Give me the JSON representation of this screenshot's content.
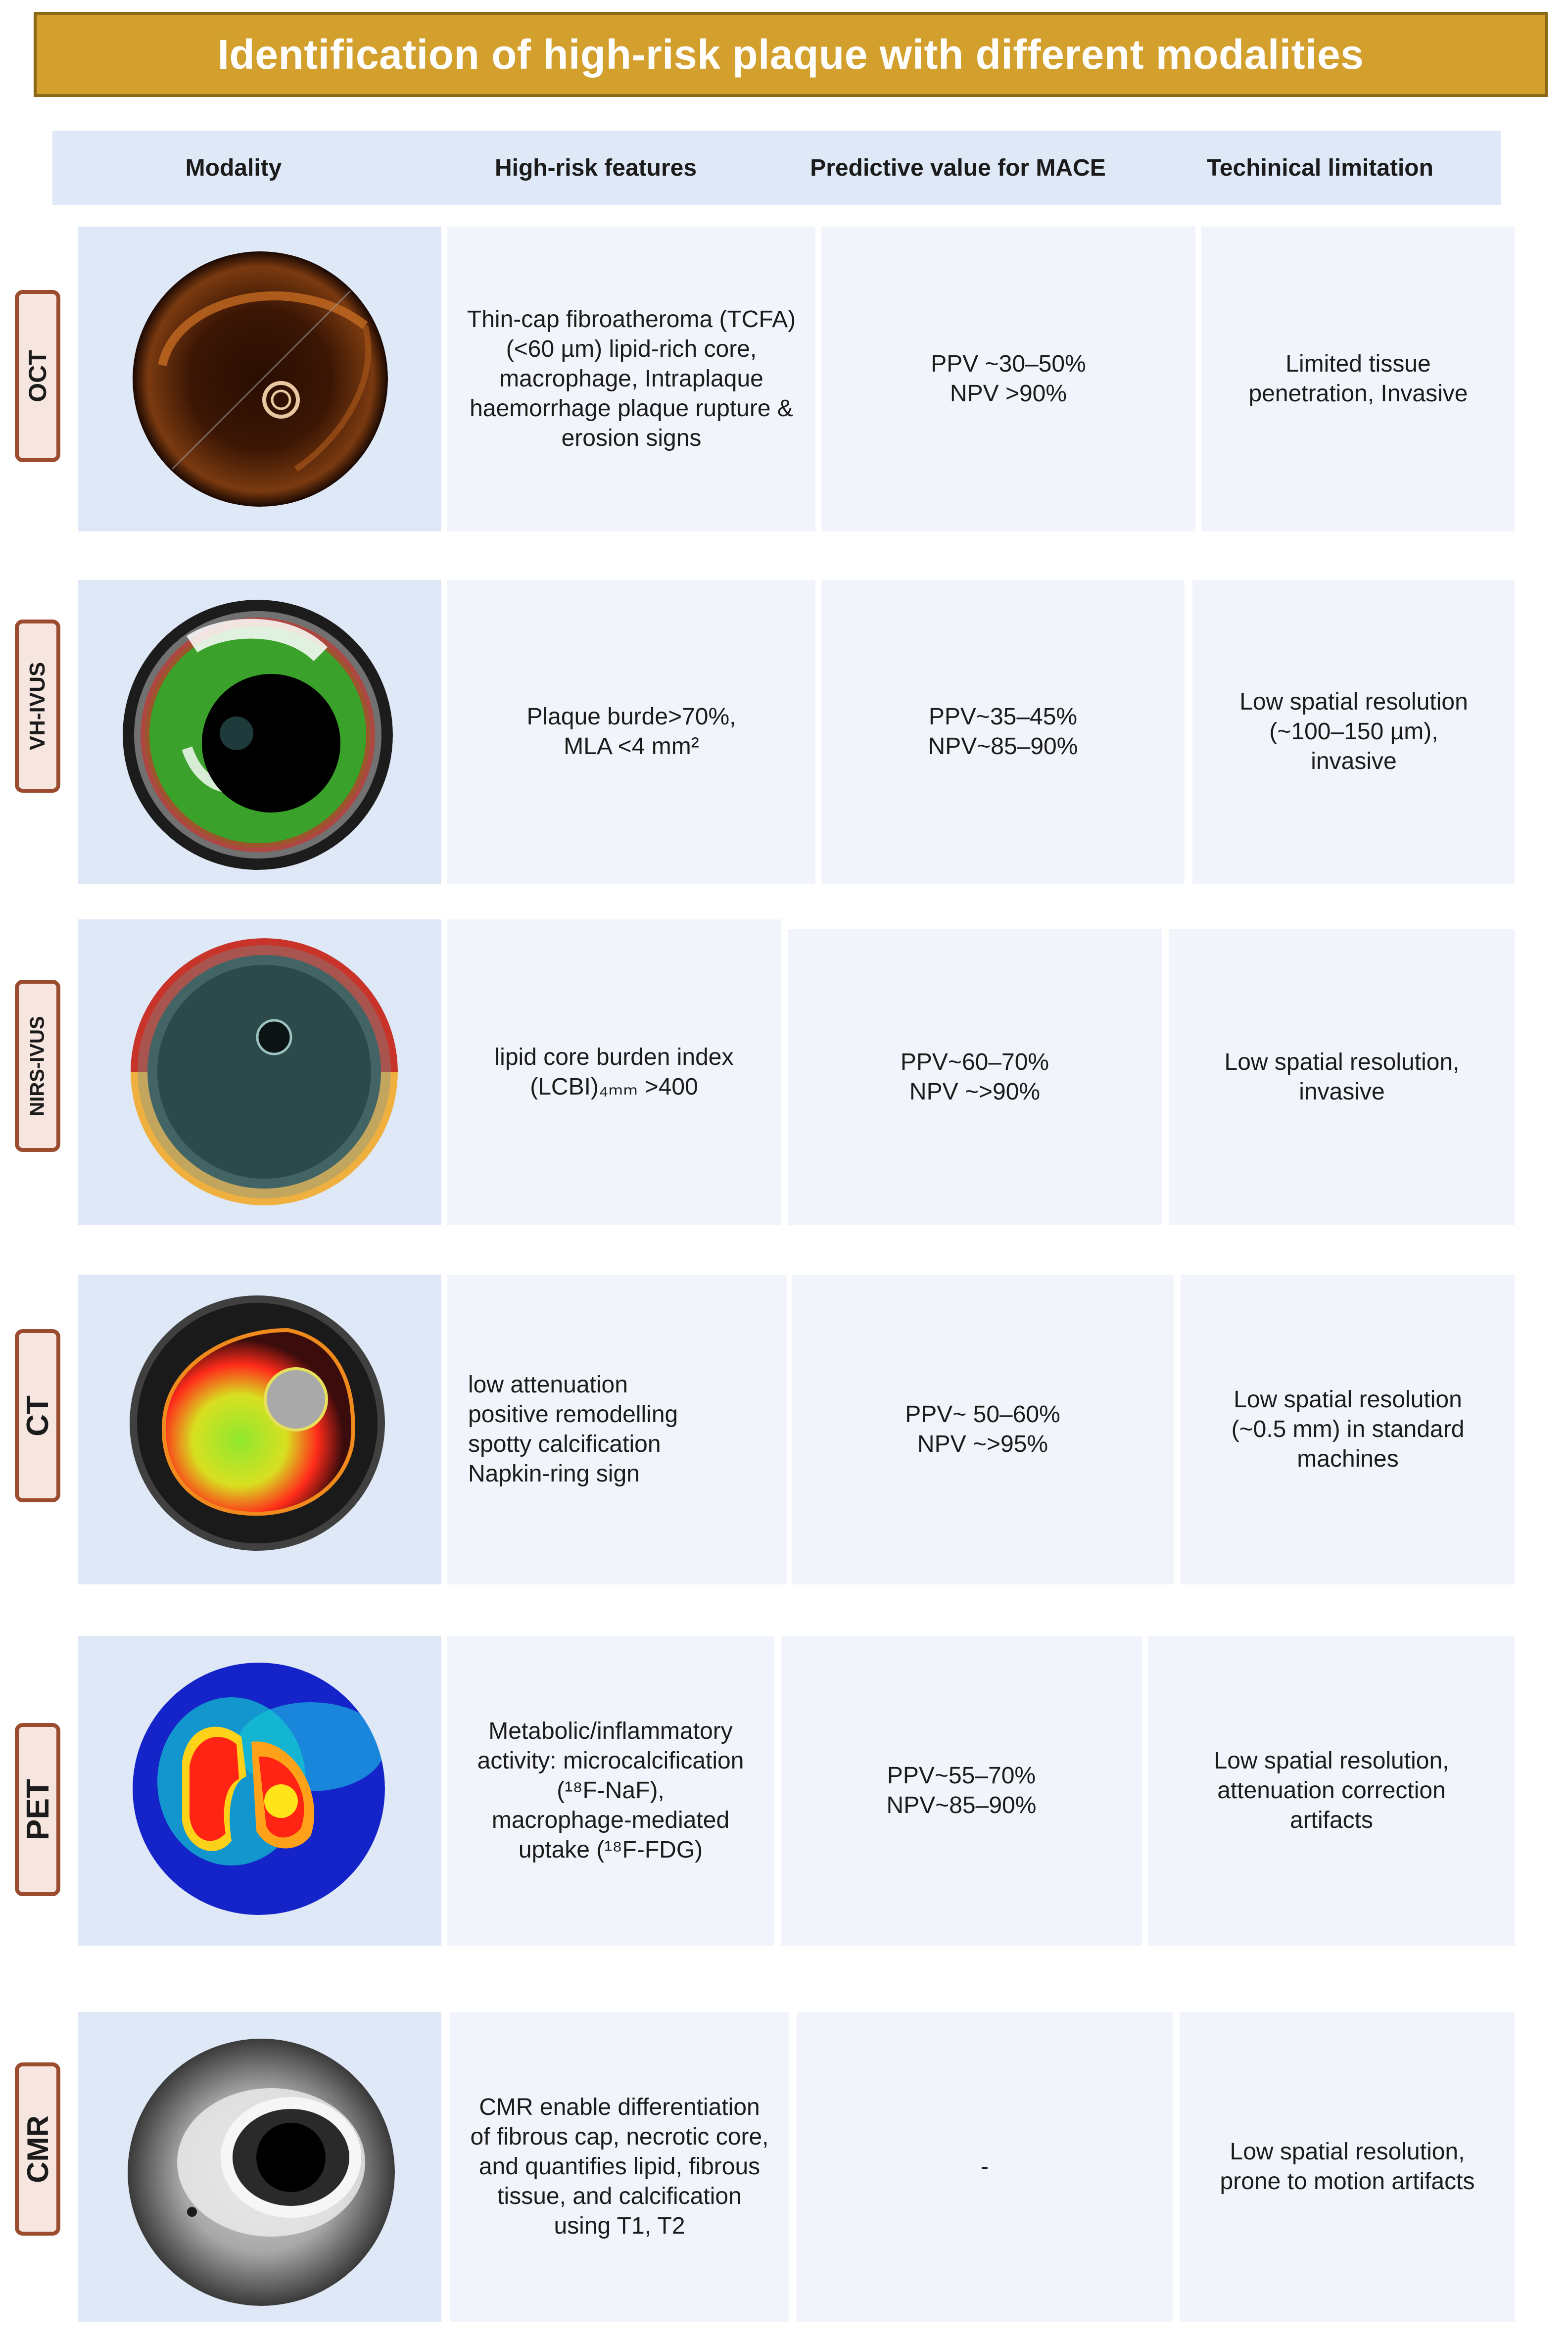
{
  "title": "Identification of high-risk plaque with different modalities",
  "columns": [
    "Modality",
    "High-risk features",
    "Predictive value for MACE",
    "Techinical limitation"
  ],
  "rows": [
    {
      "modality": "OCT",
      "features": "Thin-cap fibroatheroma (TCFA)\n(<60 µm) lipid-rich core,\nmacrophage,  Intraplaque\nhaemorrhage plaque rupture &\nerosion signs",
      "predictive": "PPV ~30–50%\nNPV >90%",
      "limitation": "Limited tissue\npenetration, Invasive"
    },
    {
      "modality": "VH-IVUS",
      "features": "Plaque burde>70%,\nMLA <4 mm²",
      "predictive": "PPV~35–45%\nNPV~85–90%",
      "limitation": "Low spatial resolution\n(~100–150 µm),\ninvasive"
    },
    {
      "modality": "NIRS-IVUS",
      "features": "lipid core burden index\n(LCBI)₄ₘₘ >400",
      "predictive": "PPV~60–70%\nNPV ~>90%",
      "limitation": "Low spatial resolution,\ninvasive"
    },
    {
      "modality": "CT",
      "features": "low attenuation\npositive remodelling\nspotty calcification\nNapkin-ring sign",
      "predictive": "PPV~ 50–60%\nNPV ~>95%",
      "limitation": "Low spatial resolution\n(~0.5 mm) in standard\nmachines"
    },
    {
      "modality": "PET",
      "features": "Metabolic/inflammatory\nactivity: microcalcification\n(¹⁸F-NaF),\nmacrophage-mediated\nuptake (¹⁸F-FDG)",
      "predictive": "PPV~55–70%\nNPV~85–90%",
      "limitation": "Low spatial resolution,\nattenuation correction\nartifacts"
    },
    {
      "modality": "CMR",
      "features": "CMR enable differentiation\nof fibrous cap, necrotic core,\nand quantifies lipid, fibrous\ntissue, and calcification\nusing T1, T2",
      "predictive": "-",
      "limitation": "Low spatial resolution,\nprone to motion artifacts"
    }
  ],
  "colors": {
    "banner": "#d39f2d",
    "banner_border": "#8c6716",
    "header_bg": "#dfe8f7",
    "cell_bg": "#f1f4fa",
    "tag_border": "#9b4c2f",
    "tag_bg": "#f7e6e0"
  }
}
